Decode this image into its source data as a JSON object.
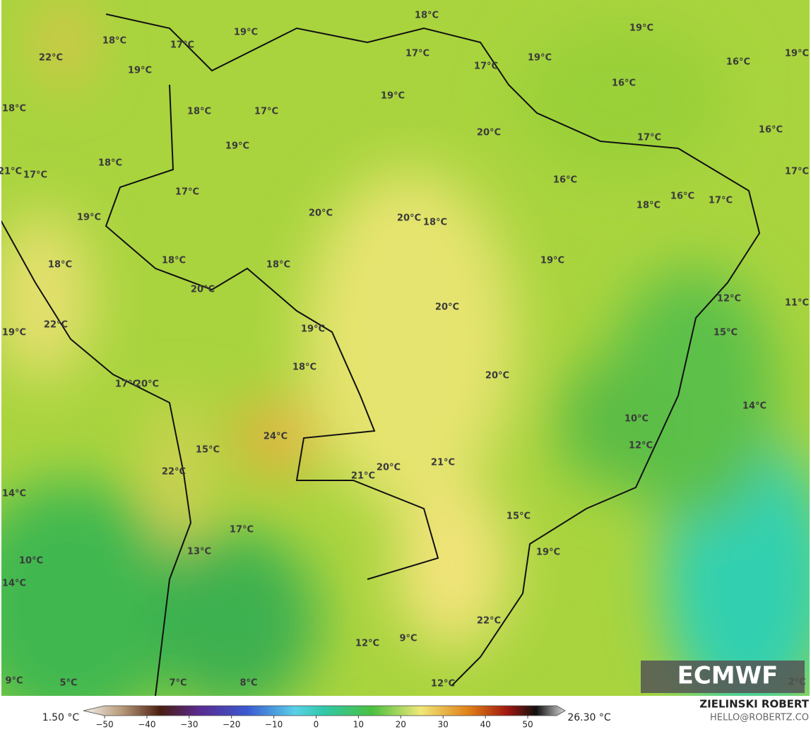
{
  "map": {
    "labels": [
      "18°C",
      "19°C",
      "19°C",
      "18°C",
      "17°C",
      "17°C",
      "19°C",
      "19°C",
      "22°C",
      "16°C",
      "17°C",
      "19°C",
      "16°C",
      "19°C",
      "18°C",
      "18°C",
      "17°C",
      "20°C",
      "16°C",
      "17°C",
      "19°C",
      "18°C",
      "21°C",
      "17°C",
      "17°C",
      "16°C",
      "17°C",
      "16°C",
      "17°C",
      "18°C",
      "20°C",
      "20°C",
      "18°C",
      "19°C",
      "18°C",
      "18°C",
      "18°C",
      "19°C",
      "20°C",
      "12°C",
      "11°C",
      "20°C",
      "22°C",
      "19°C",
      "19°C",
      "15°C",
      "18°C",
      "20°C",
      "17°C",
      "20°C",
      "14°C",
      "10°C",
      "24°C",
      "12°C",
      "15°C",
      "21°C",
      "20°C",
      "22°C",
      "21°C",
      "14°C",
      "15°C",
      "17°C",
      "19°C",
      "13°C",
      "10°C",
      "14°C",
      "22°C",
      "12°C",
      "9°C",
      "9°C",
      "5°C",
      "7°C",
      "8°C",
      "12°C",
      "2°C"
    ],
    "logo": "ECMWF"
  },
  "colorbar": {
    "min_label": "1.50 °C",
    "max_label": "26.30 °C",
    "ticks": [
      {
        "value": -50,
        "label": "−50"
      },
      {
        "value": -40,
        "label": "−40"
      },
      {
        "value": -30,
        "label": "−30"
      },
      {
        "value": -20,
        "label": "−20"
      },
      {
        "value": -10,
        "label": "−10"
      },
      0,
      10,
      20,
      30,
      40,
      50
    ],
    "lim": [
      -50,
      50
    ]
  },
  "footer": {
    "author": "ZIELINSKI ROBERT",
    "contact": "HELLO@ROBERTZ.CO"
  }
}
